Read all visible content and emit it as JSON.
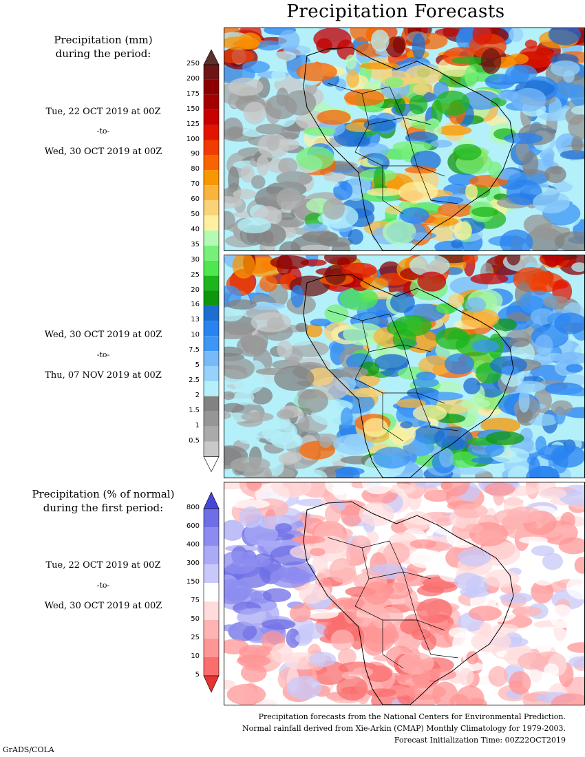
{
  "title": "Precipitation Forecasts",
  "panel1": {
    "label_line1": "Precipitation (mm)",
    "label_line2": "during the period:",
    "start": "Tue, 22 OCT 2019 at 00Z",
    "to": "-to-",
    "end": "Wed, 30 OCT 2019 at 00Z"
  },
  "panel2": {
    "start": "Wed, 30 OCT 2019 at 00Z",
    "to": "-to-",
    "end": "Thu, 07 NOV 2019 at 00Z"
  },
  "panel3": {
    "label_line1": "Precipitation (% of normal)",
    "label_line2": "during the first period:",
    "start": "Tue, 22 OCT 2019 at 00Z",
    "to": "-to-",
    "end": "Wed, 30 OCT 2019 at 00Z"
  },
  "footer": {
    "line1": "Precipitation forecasts from the National Centers for Environmental Prediction.",
    "line2": "Normal rainfall derived from Xie-Arkin (CMAP) Monthly Climatology for 1979-2003.",
    "line3": "Forecast Initialization Time: 00Z22OCT2019"
  },
  "credit": "GrADS/COLA",
  "chart_data": [
    {
      "type": "heatmap",
      "title": "Precipitation (mm) during the period: Tue, 22 OCT 2019 at 00Z -to- Wed, 30 OCT 2019 at 00Z",
      "colorbar_levels": [
        "250",
        "200",
        "175",
        "150",
        "125",
        "100",
        "90",
        "80",
        "70",
        "60",
        "50",
        "40",
        "35",
        "30",
        "25",
        "20",
        "16",
        "13",
        "10",
        "7.5",
        "5",
        "2.5",
        "2",
        "1.5",
        "1",
        "0.5"
      ],
      "colorbar_colors": [
        "#6e1414",
        "#8c0000",
        "#a50000",
        "#c80000",
        "#e11400",
        "#f03c00",
        "#fa6400",
        "#fa9600",
        "#fab43c",
        "#fad278",
        "#fff0a0",
        "#b4fab4",
        "#78f078",
        "#50e650",
        "#1eb41e",
        "#0f960f",
        "#1e6ed2",
        "#2882f0",
        "#3c96f5",
        "#78b9fa",
        "#96d2fa",
        "#b4f0fa",
        "#828282",
        "#969696",
        "#aaaaaa",
        "#c8c8c8"
      ],
      "colorbar_top_color": "#5a3228",
      "colorbar_bottom_color": "#ffffff"
    },
    {
      "type": "heatmap",
      "title": "Precipitation (mm) during the period: Wed, 30 OCT 2019 at 00Z -to- Thu, 07 NOV 2019 at 00Z",
      "colorbar_levels": [
        "250",
        "200",
        "175",
        "150",
        "125",
        "100",
        "90",
        "80",
        "70",
        "60",
        "50",
        "40",
        "35",
        "30",
        "25",
        "20",
        "16",
        "13",
        "10",
        "7.5",
        "5",
        "2.5",
        "2",
        "1.5",
        "1",
        "0.5"
      ]
    },
    {
      "type": "heatmap",
      "title": "Precipitation (% of normal) during the first period: Tue, 22 OCT 2019 at 00Z -to- Wed, 30 OCT 2019 at 00Z",
      "colorbar_levels": [
        "800",
        "600",
        "400",
        "300",
        "150",
        "75",
        "50",
        "25",
        "10",
        "5"
      ],
      "colorbar_colors": [
        "#6e6ee6",
        "#8c8cf0",
        "#aaaaf5",
        "#c8c8fa",
        "#ffffff",
        "#ffdcdc",
        "#ffb4b4",
        "#ff9696",
        "#fa6e6e"
      ],
      "colorbar_top_color": "#4646dc",
      "colorbar_bottom_color": "#e63232"
    }
  ]
}
